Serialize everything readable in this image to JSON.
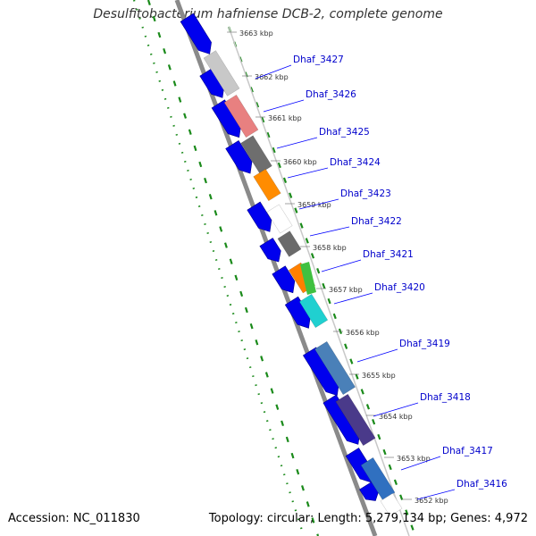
{
  "title": "Desulfitobacterium hafniense DCB-2, complete genome",
  "footer": {
    "accession": "Accession: NC_011830",
    "topology": "Topology: circular; Length: 5,279,134 bp; Genes: 4,972"
  },
  "colors": {
    "forward_cds": "#0000ee",
    "backbone": "#8a8a8a",
    "gene_label": "#0000cc",
    "gene_leader": "#0000ff",
    "tick_green": "#1a8a1a"
  },
  "kbp_ticks": [
    "3663 kbp",
    "3662 kbp",
    "3661 kbp",
    "3660 kbp",
    "3659 kbp",
    "3658 kbp",
    "3657 kbp",
    "3656 kbp",
    "3655 kbp",
    "3654 kbp",
    "3653 kbp",
    "3652 kbp"
  ],
  "genes": [
    {
      "label": "Dhaf_3427",
      "color": "#c8c8c8"
    },
    {
      "label": "Dhaf_3426",
      "color": "#e88080"
    },
    {
      "label": "Dhaf_3425",
      "color": "#6e6e6e"
    },
    {
      "label": "Dhaf_3424",
      "color": "#ff8c00"
    },
    {
      "label": "Dhaf_3423",
      "color": "#ffffff"
    },
    {
      "label": "Dhaf_3422",
      "color": "#6a6a6a"
    },
    {
      "label": "Dhaf_3421",
      "color": "#ff8000"
    },
    {
      "label": "Dhaf_3420",
      "color": "#20d0d0"
    },
    {
      "label": "Dhaf_3419",
      "color": "#4a80b8"
    },
    {
      "label": "Dhaf_3418",
      "color": "#4a3a8a"
    },
    {
      "label": "Dhaf_3417",
      "color": "#3070c0"
    },
    {
      "label": "Dhaf_3416",
      "color": "#ffffff"
    }
  ]
}
